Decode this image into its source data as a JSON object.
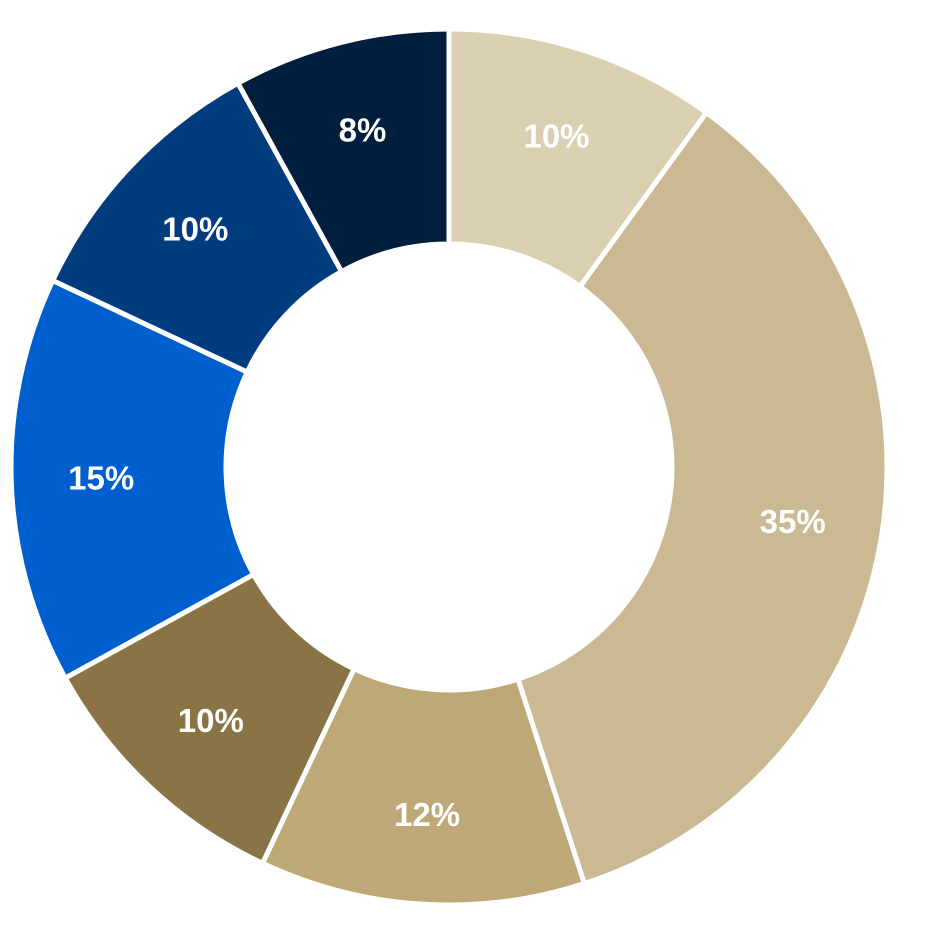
{
  "chart_data": {
    "type": "pie",
    "donut": true,
    "legend": "none",
    "slices": [
      {
        "value": 10,
        "label": "10%",
        "color": "#DBCFB2"
      },
      {
        "value": 35,
        "label": "35%",
        "color": "#CBB994"
      },
      {
        "value": 12,
        "label": "12%",
        "color": "#BEA877"
      },
      {
        "value": 10,
        "label": "10%",
        "color": "#8A7446"
      },
      {
        "value": 15,
        "label": "15%",
        "color": "#005FCE"
      },
      {
        "value": 10,
        "label": "10%",
        "color": "#013C7E"
      },
      {
        "value": 8,
        "label": "8%",
        "color": "#001E3E"
      }
    ]
  }
}
